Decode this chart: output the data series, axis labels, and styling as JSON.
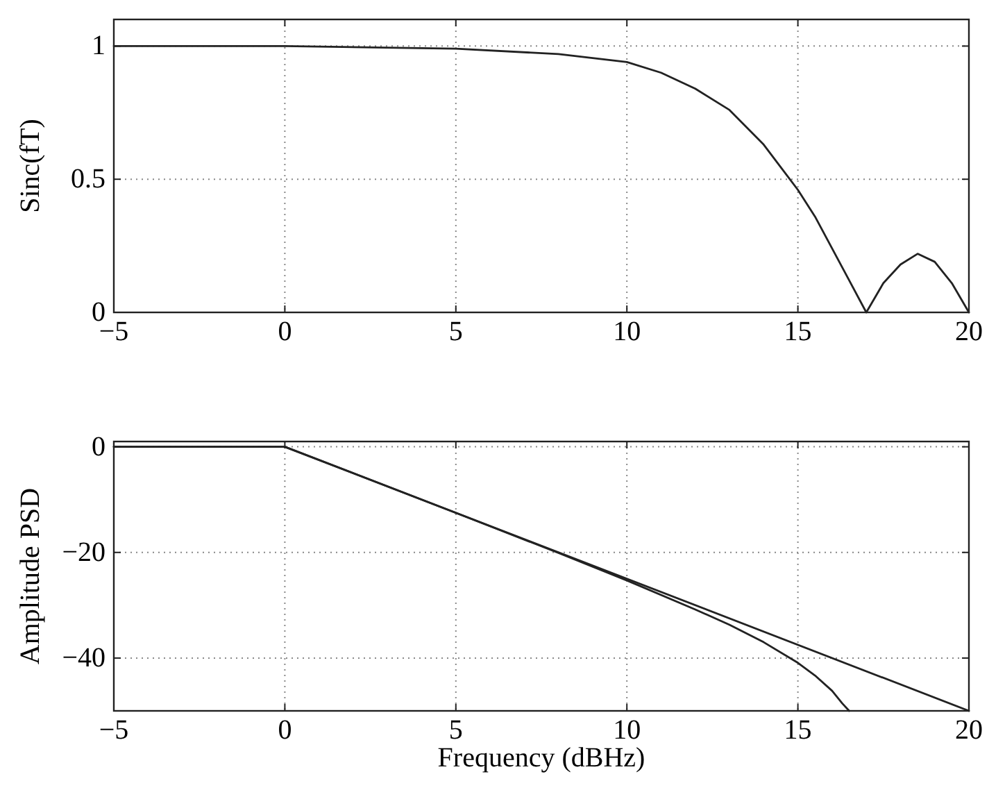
{
  "chart_data": [
    {
      "type": "line",
      "ylabel": "Sinc(fT)",
      "xlim": [
        -5,
        20
      ],
      "ylim": [
        0,
        1.1
      ],
      "xticks": [
        -5,
        0,
        5,
        10,
        15,
        20
      ],
      "yticks": [
        0,
        0.5,
        1
      ],
      "grid": true,
      "line_style": "solid",
      "series": [
        {
          "color": "#222222",
          "x": [
            -5,
            0,
            5,
            8,
            10,
            11,
            12,
            13,
            14,
            15,
            15.5,
            16,
            16.5,
            17,
            17.5,
            18,
            18.5,
            19,
            19.5,
            20
          ],
          "values": [
            1,
            1,
            0.99,
            0.97,
            0.94,
            0.9,
            0.84,
            0.76,
            0.63,
            0.46,
            0.36,
            0.24,
            0.12,
            0,
            0.11,
            0.18,
            0.22,
            0.19,
            0.11,
            0
          ]
        }
      ]
    },
    {
      "type": "line",
      "xlabel": "Frequency (dBHz)",
      "ylabel": "Amplitude PSD",
      "xlim": [
        -5,
        20
      ],
      "ylim": [
        -50,
        1
      ],
      "xticks": [
        -5,
        0,
        5,
        10,
        15,
        20
      ],
      "yticks": [
        -40,
        -20,
        0
      ],
      "grid": true,
      "line_style": "solid",
      "series": [
        {
          "color": "#222222",
          "x": [
            -5,
            0,
            20
          ],
          "values": [
            0,
            0,
            -50
          ]
        },
        {
          "color": "#222222",
          "x": [
            -5,
            0,
            5,
            8,
            10,
            12,
            13,
            14,
            15,
            15.5,
            16,
            16.3,
            16.5
          ],
          "values": [
            0,
            0,
            -12.5,
            -20.1,
            -25.3,
            -30.8,
            -33.7,
            -37,
            -40.9,
            -43.3,
            -46.2,
            -48.6,
            -50
          ]
        }
      ]
    }
  ]
}
